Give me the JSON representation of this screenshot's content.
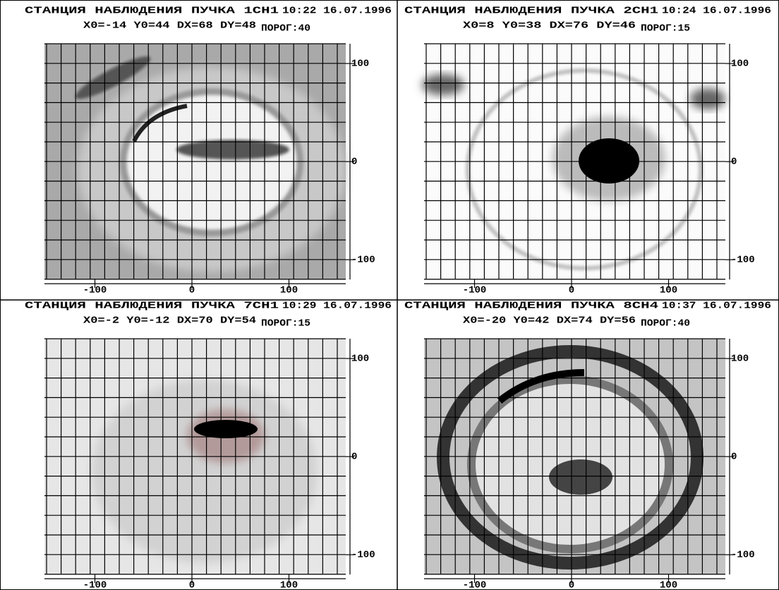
{
  "panels": [
    {
      "title": "СТАНЦИЯ НАБЛЮДЕНИЯ ПУЧКА 1CH1",
      "time": "10:22 16.07.1996",
      "params": "X0=-14 Y0=44  DX=68 DY=48",
      "threshold": "ПОРОГ:40",
      "xticks": [
        -100,
        0,
        100
      ],
      "yticks": [
        100,
        0,
        -100
      ]
    },
    {
      "title": "СТАНЦИЯ НАБЛЮДЕНИЯ ПУЧКА 2CH1",
      "time": "10:24 16.07.1996",
      "params": "X0=8 Y0=38  DX=76 DY=46",
      "threshold": "ПОРОГ:15",
      "xticks": [
        -100,
        0,
        100
      ],
      "yticks": [
        100,
        0,
        -100
      ]
    },
    {
      "title": "СТАНЦИЯ НАБЛЮДЕНИЯ ПУЧКА 7CH1",
      "time": "10:29 16.07.1996",
      "params": "X0=-2 Y0=-12  DX=70 DY=54",
      "threshold": "ПОРОГ:15",
      "xticks": [
        -100,
        0,
        100
      ],
      "yticks": [
        100,
        0,
        -100
      ]
    },
    {
      "title": "СТАНЦИЯ НАБЛЮДЕНИЯ ПУЧКА 8CH4",
      "time": "10:37 16.07.1996",
      "params": "X0=-20 Y0=42  DX=74 DY=56",
      "threshold": "ПОРОГ:40",
      "xticks": [
        -100,
        0,
        100
      ],
      "yticks": [
        100,
        0,
        -100
      ]
    }
  ]
}
